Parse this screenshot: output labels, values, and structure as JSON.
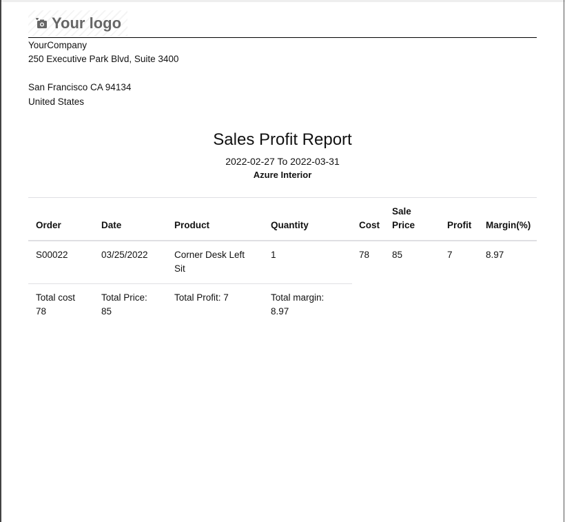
{
  "logo": {
    "text": "Your logo",
    "icon": "camera-plus-icon"
  },
  "company": {
    "name": "YourCompany",
    "street": "250 Executive Park Blvd, Suite 3400",
    "city": "San Francisco CA 94134",
    "country": "United States"
  },
  "report": {
    "title": "Sales Profit Report",
    "date_range": "2022-02-27 To 2022-03-31",
    "customer": "Azure Interior"
  },
  "table": {
    "headers": {
      "order": "Order",
      "date": "Date",
      "product": "Product",
      "quantity": "Quantity",
      "cost": "Cost",
      "sale_price": "Sale Price",
      "profit": "Profit",
      "margin": "Margin(%)"
    },
    "rows": [
      {
        "order": "S00022",
        "date": "03/25/2022",
        "product": "Corner Desk Left Sit",
        "quantity": "1",
        "cost": "78",
        "sale_price": "85",
        "profit": "7",
        "margin": "8.97"
      }
    ],
    "totals": {
      "cost": "Total cost 78",
      "price": "Total Price: 85",
      "profit": "Total Profit: 7",
      "margin": "Total margin: 8.97"
    }
  }
}
